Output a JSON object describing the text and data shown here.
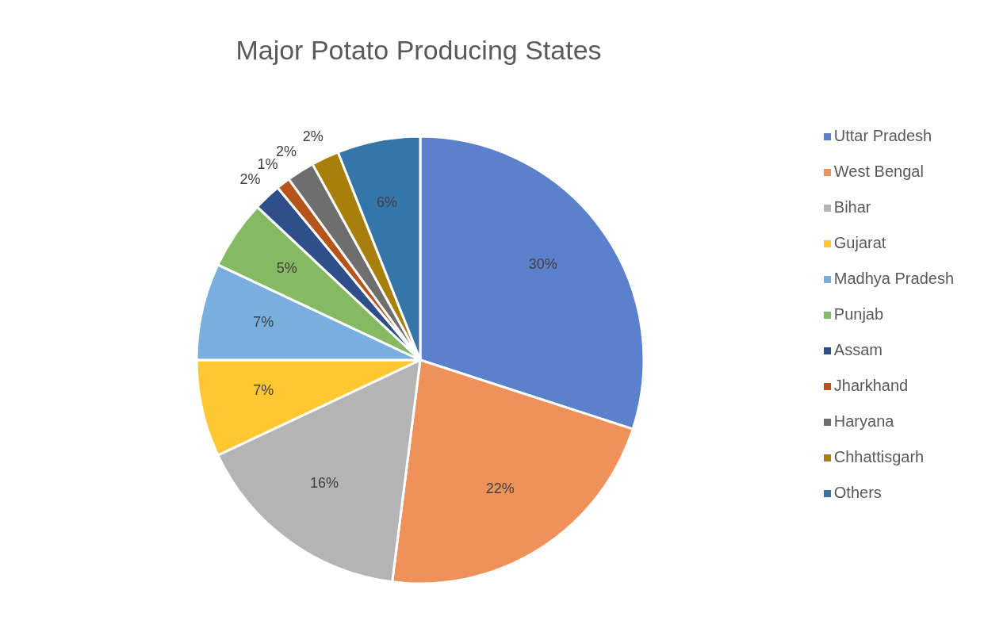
{
  "chart_data": {
    "type": "pie",
    "title": "Major Potato Producing States",
    "categories": [
      "Uttar Pradesh",
      "West Bengal",
      "Bihar",
      "Gujarat",
      "Madhya Pradesh",
      "Punjab",
      "Assam",
      "Jharkhand",
      "Haryana",
      "Chhattisgarh",
      "Others"
    ],
    "values": [
      30,
      22,
      16,
      7,
      7,
      5,
      2,
      1,
      2,
      2,
      6
    ],
    "value_labels": [
      "30%",
      "22%",
      "16%",
      "7%",
      "7%",
      "5%",
      "2%",
      "1%",
      "2%",
      "2%",
      "6%"
    ],
    "colors": [
      "#5b80cc",
      "#ef915a",
      "#b4b4b4",
      "#ffc832",
      "#79aede",
      "#86ba62",
      "#2e4f8a",
      "#b5541b",
      "#6e6e6e",
      "#a87f0c",
      "#3575a8"
    ],
    "legend": "right"
  }
}
